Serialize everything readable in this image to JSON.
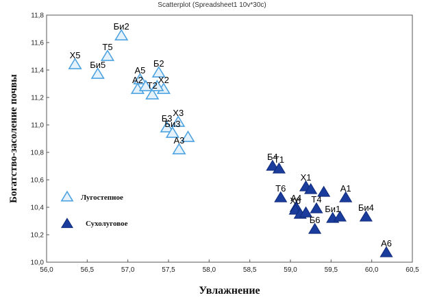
{
  "chart_data": {
    "type": "scatter",
    "title": "Scatterplot (Spreadsheet1 10v*30c)",
    "xlabel": "Увлажнение",
    "ylabel": "Богатство-засоление почвы",
    "xlim": [
      56.0,
      60.5
    ],
    "ylim": [
      10.0,
      11.8
    ],
    "xticks": [
      "56,0",
      "56,5",
      "57,0",
      "57,5",
      "58,0",
      "58,5",
      "59,0",
      "59,5",
      "60,0",
      "60,5"
    ],
    "yticks": [
      "10,0",
      "10,2",
      "10,4",
      "10,6",
      "10,8",
      "11,0",
      "11,2",
      "11,4",
      "11,6",
      "11,8"
    ],
    "legend_position": "left",
    "series": [
      {
        "name": "Лугостепное",
        "marker": "triangle-open",
        "color": "#4da3e0",
        "points": [
          {
            "label": "Би2",
            "x": 56.92,
            "y": 11.65
          },
          {
            "label": "Т5",
            "x": 56.75,
            "y": 11.5
          },
          {
            "label": "Х5",
            "x": 56.35,
            "y": 11.44
          },
          {
            "label": "Би5",
            "x": 56.63,
            "y": 11.37
          },
          {
            "label": "А5",
            "x": 57.15,
            "y": 11.33
          },
          {
            "label": "Б2",
            "x": 57.38,
            "y": 11.38
          },
          {
            "label": "А2",
            "x": 57.12,
            "y": 11.26
          },
          {
            "label": "Т2",
            "x": 57.3,
            "y": 11.22
          },
          {
            "label": "Х2",
            "x": 57.44,
            "y": 11.26
          },
          {
            "label": "",
            "x": 57.22,
            "y": 11.28
          },
          {
            "label": "",
            "x": 57.36,
            "y": 11.28
          },
          {
            "label": "Х3",
            "x": 57.62,
            "y": 11.02
          },
          {
            "label": "Б3",
            "x": 57.48,
            "y": 10.98
          },
          {
            "label": "Би3",
            "x": 57.55,
            "y": 10.94
          },
          {
            "label": "",
            "x": 57.74,
            "y": 10.91
          },
          {
            "label": "А3",
            "x": 57.63,
            "y": 10.82
          }
        ]
      },
      {
        "name": "Сухолуговое",
        "marker": "triangle-filled",
        "color": "#1a3c9c",
        "points": [
          {
            "label": "Б4",
            "x": 58.78,
            "y": 10.7
          },
          {
            "label": "Т1",
            "x": 58.86,
            "y": 10.68
          },
          {
            "label": "Т6",
            "x": 58.88,
            "y": 10.47
          },
          {
            "label": "Х1",
            "x": 59.19,
            "y": 10.55
          },
          {
            "label": "",
            "x": 59.25,
            "y": 10.53
          },
          {
            "label": "А4",
            "x": 59.07,
            "y": 10.4
          },
          {
            "label": "",
            "x": 59.41,
            "y": 10.51
          },
          {
            "label": "А1",
            "x": 59.68,
            "y": 10.47
          },
          {
            "label": "Х6",
            "x": 59.06,
            "y": 10.38
          },
          {
            "label": "Т4",
            "x": 59.32,
            "y": 10.39
          },
          {
            "label": "",
            "x": 59.12,
            "y": 10.35
          },
          {
            "label": "",
            "x": 59.19,
            "y": 10.36
          },
          {
            "label": "Би1",
            "x": 59.52,
            "y": 10.32
          },
          {
            "label": "",
            "x": 59.61,
            "y": 10.33
          },
          {
            "label": "Би4",
            "x": 59.93,
            "y": 10.33
          },
          {
            "label": "Б6",
            "x": 59.3,
            "y": 10.24
          },
          {
            "label": "А6",
            "x": 60.18,
            "y": 10.07
          }
        ]
      }
    ]
  }
}
